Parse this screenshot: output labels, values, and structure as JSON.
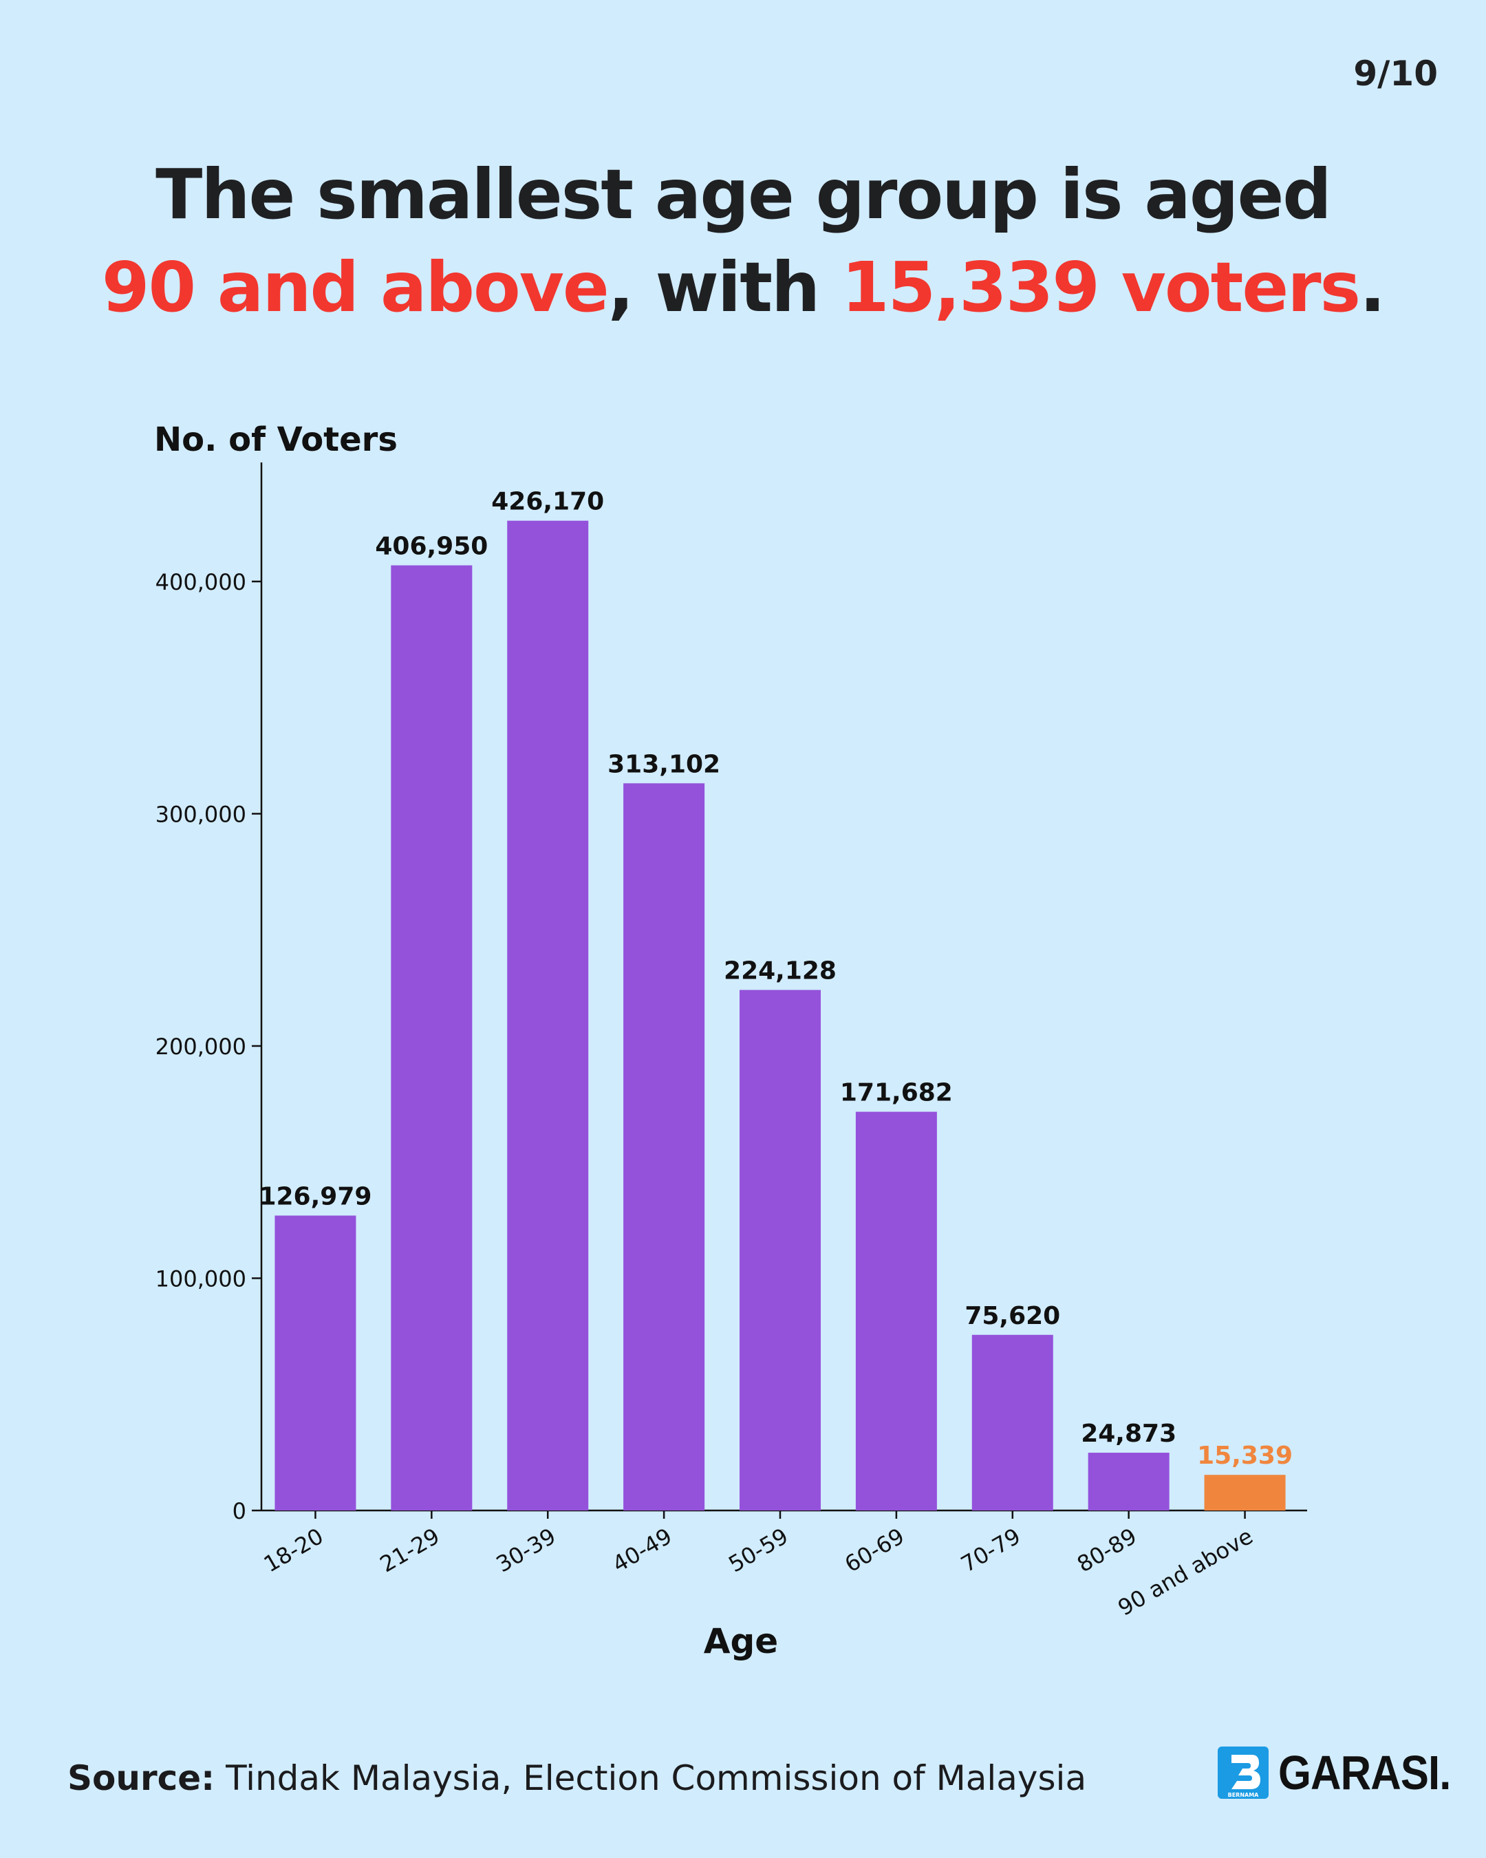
{
  "page_counter": "9/10",
  "headline": {
    "line1": "The smallest age group is aged",
    "hl1": "90 and above",
    "mid": ", with ",
    "hl2": "15,339 voters",
    "end": "."
  },
  "footer": {
    "source_label": "Source:",
    "source_text": " Tindak Malaysia, Election Commission of Malaysia",
    "brand_name": "GARASI.",
    "brand_sub": "BERNAMA",
    "brand_icon": "bernama-b-logo"
  },
  "colors": {
    "background": "#d1ecfd",
    "bar": "#9452db",
    "highlight_bar": "#f0863e",
    "headline_highlight": "#f2372f"
  },
  "chart_data": {
    "type": "bar",
    "ylabel": "No. of Voters",
    "xlabel": "Age",
    "categories": [
      "18-20",
      "21-29",
      "30-39",
      "40-49",
      "50-59",
      "60-69",
      "70-79",
      "80-89",
      "90 and above"
    ],
    "values": [
      126979,
      406950,
      426170,
      313102,
      224128,
      171682,
      75620,
      24873,
      15339
    ],
    "value_labels": [
      "126,979",
      "406,950",
      "426,170",
      "313,102",
      "224,128",
      "171,682",
      "75,620",
      "24,873",
      "15,339"
    ],
    "highlight_index": 8,
    "yticks": [
      0,
      100000,
      200000,
      300000,
      400000
    ],
    "ytick_labels": [
      "0",
      "100,000",
      "200,000",
      "300,000",
      "400,000"
    ],
    "ylim": [
      0,
      450000
    ],
    "grid": false,
    "legend": "none"
  }
}
